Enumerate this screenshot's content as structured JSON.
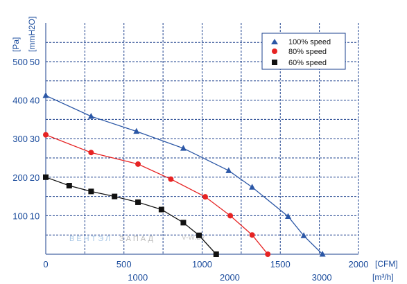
{
  "chart_data": {
    "type": "line",
    "y_left_labels": [
      "100",
      "200",
      "300",
      "400",
      "500"
    ],
    "y_right_labels": [
      "10",
      "20",
      "30",
      "40",
      "50"
    ],
    "y_unit_left": "[Pa]",
    "y_unit_right": "[mmH2O]",
    "x_top_labels": [
      "0",
      "500",
      "1000",
      "1500",
      "2000"
    ],
    "x_bottom_labels": [
      "1000",
      "2000",
      "3000"
    ],
    "x_unit_top": "[CFM]",
    "x_unit_bottom": "[m³/h]",
    "xlim": [
      0,
      2000
    ],
    "ylim": [
      0,
      500
    ],
    "grid": true,
    "legend_position": "top-right",
    "series": [
      {
        "name": "100% speed",
        "color": "#2b57a6",
        "marker": "triangle",
        "x": [
          0,
          290,
          580,
          880,
          1170,
          1320,
          1550,
          1650,
          1770
        ],
        "y": [
          412,
          358,
          319,
          275,
          217,
          174,
          98,
          48,
          0
        ]
      },
      {
        "name": "80% speed",
        "color": "#e62323",
        "marker": "circle",
        "x": [
          0,
          290,
          590,
          800,
          1020,
          1180,
          1320,
          1420
        ],
        "y": [
          310,
          264,
          234,
          195,
          149,
          100,
          50,
          0
        ]
      },
      {
        "name": "60% speed",
        "color": "#111111",
        "marker": "square",
        "x": [
          0,
          150,
          290,
          440,
          590,
          740,
          880,
          980,
          1090
        ],
        "y": [
          200,
          178,
          163,
          150,
          135,
          116,
          82,
          49,
          0
        ]
      }
    ]
  },
  "watermark": {
    "left": "ВЕНТЭЛ",
    "right": "ЗАПАД",
    "site": "V-W.BY"
  }
}
